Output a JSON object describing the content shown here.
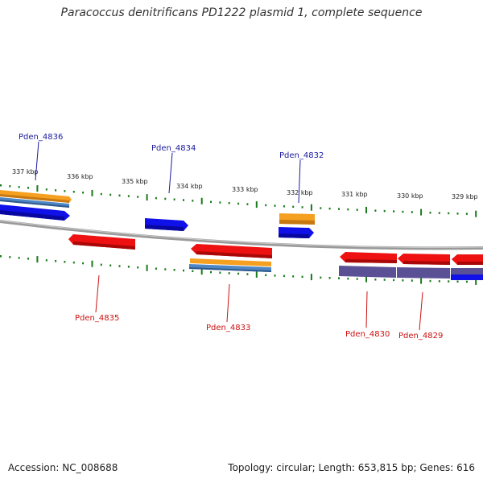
{
  "title": "Paracoccus denitrificans PD1222 plasmid 1, complete sequence",
  "footer": {
    "accession": "Accession: NC_008688",
    "topology": "Topology: circular; Length: 653,815 bp; Genes: 616"
  },
  "colors": {
    "forward_gene": "#1010e8",
    "reverse_gene": "#ee1111",
    "orange_feature": "#f5a020",
    "steel_feature": "#4f87c5",
    "purple_feature": "#5a5096",
    "backbone": "#888888",
    "tick": "#1a7a1a",
    "forward_label": "#1a1aa0",
    "reverse_label": "#cc1111"
  },
  "scale_labels": [
    "337 kbp",
    "336 kbp",
    "335 kbp",
    "334 kbp",
    "333 kbp",
    "332 kbp",
    "331 kbp",
    "330 kbp",
    "329 kbp"
  ],
  "gene_labels": {
    "forward": [
      "Pden_4836",
      "Pden_4834",
      "Pden_4832"
    ],
    "reverse": [
      "Pden_4835",
      "Pden_4833",
      "Pden_4830",
      "Pden_4829"
    ]
  }
}
